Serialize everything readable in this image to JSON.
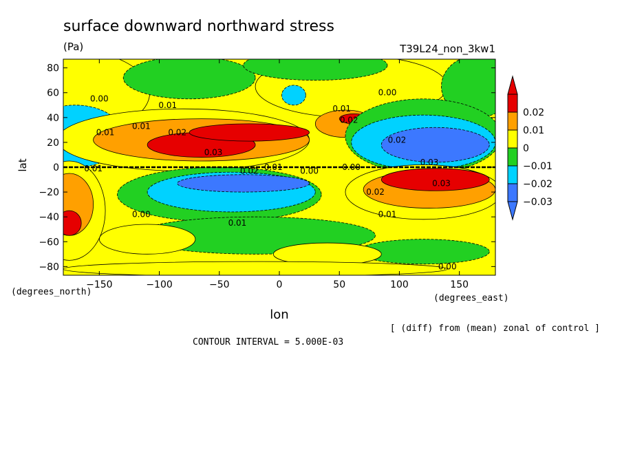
{
  "chart_data": {
    "type": "heatmap",
    "title": "surface downward northward stress",
    "units": "(Pa)",
    "run_id": "T39L24_non_3kw1",
    "xlabel": "lon",
    "ylabel": "lat",
    "xunits": "(degrees_east)",
    "yunits": "(degrees_north)",
    "note": "[ (diff) from (mean) zonal of control ]",
    "contour_interval": "CONTOUR INTERVAL = 5.000E-03",
    "xlim": [
      -180,
      180
    ],
    "ylim": [
      -87,
      87
    ],
    "x_ticks": [
      -150,
      -100,
      -50,
      0,
      50,
      100,
      150
    ],
    "y_ticks": [
      -80,
      -60,
      -40,
      -20,
      0,
      20,
      40,
      60,
      80
    ],
    "x_tick_labels": [
      "−150",
      "−100",
      "−50",
      "0",
      "50",
      "100",
      "150"
    ],
    "y_tick_labels": [
      "−80",
      "−60",
      "−40",
      "−20",
      "0",
      "20",
      "40",
      "60",
      "80"
    ],
    "colorbar": {
      "levels": [
        -0.03,
        -0.02,
        -0.01,
        0,
        0.01,
        0.02
      ],
      "labels": [
        "−0.03",
        "−0.02",
        "−0.01",
        "0",
        "0.01",
        "0.02"
      ],
      "colors": [
        "#3c78ff",
        "#00d2ff",
        "#22d022",
        "#ffff00",
        "#ffa000",
        "#e60000"
      ],
      "under_color": "#3c78ff",
      "over_color": "#e60000"
    },
    "contour_labels": [
      {
        "text": "0.00",
        "lon": -150,
        "lat": 55
      },
      {
        "text": "0.01",
        "lon": -145,
        "lat": 28
      },
      {
        "text": "0.01",
        "lon": -115,
        "lat": 33
      },
      {
        "text": "0.01",
        "lon": -93,
        "lat": 50
      },
      {
        "text": "0.02",
        "lon": -85,
        "lat": 28
      },
      {
        "text": "0.03",
        "lon": -55,
        "lat": 12
      },
      {
        "text": "0.01",
        "lon": -155,
        "lat": -1
      },
      {
        "text": "0.02",
        "lon": -25,
        "lat": -3
      },
      {
        "text": "0.01",
        "lon": -5,
        "lat": 0
      },
      {
        "text": "0.00",
        "lon": 25,
        "lat": -3
      },
      {
        "text": "0.01",
        "lon": 52,
        "lat": 47
      },
      {
        "text": "0.02",
        "lon": 58,
        "lat": 38
      },
      {
        "text": "0.00",
        "lon": 90,
        "lat": 60
      },
      {
        "text": "0.02",
        "lon": 98,
        "lat": 22
      },
      {
        "text": "0.03",
        "lon": 125,
        "lat": 4
      },
      {
        "text": "0.03",
        "lon": 135,
        "lat": -13
      },
      {
        "text": "0.02",
        "lon": 80,
        "lat": -20
      },
      {
        "text": "0.01",
        "lon": 90,
        "lat": -38
      },
      {
        "text": "0.00",
        "lon": 60,
        "lat": 0
      },
      {
        "text": "0.00",
        "lon": -115,
        "lat": -38
      },
      {
        "text": "0.01",
        "lon": -35,
        "lat": -45
      },
      {
        "text": "0.00",
        "lon": 140,
        "lat": -80
      }
    ],
    "regions": [
      {
        "value": 0.005,
        "lon": -178,
        "lat": 60,
        "rx": 70,
        "ry": 35
      },
      {
        "value": 0.005,
        "lon": 60,
        "lat": 65,
        "rx": 80,
        "ry": 25
      },
      {
        "value": -0.005,
        "lon": -75,
        "lat": 72,
        "rx": 55,
        "ry": 17
      },
      {
        "value": -0.005,
        "lon": 30,
        "lat": 82,
        "rx": 60,
        "ry": 12
      },
      {
        "value": -0.005,
        "lon": 165,
        "lat": 65,
        "rx": 30,
        "ry": 25
      },
      {
        "value": -0.015,
        "lon": -170,
        "lat": 25,
        "rx": 40,
        "ry": 25
      },
      {
        "value": -0.015,
        "lon": 12,
        "lat": 58,
        "rx": 10,
        "ry": 8
      },
      {
        "value": 0.005,
        "lon": -80,
        "lat": 22,
        "rx": 105,
        "ry": 25
      },
      {
        "value": 0.015,
        "lon": -65,
        "lat": 22,
        "rx": 90,
        "ry": 17
      },
      {
        "value": 0.025,
        "lon": -65,
        "lat": 18,
        "rx": 45,
        "ry": 10
      },
      {
        "value": 0.025,
        "lon": -25,
        "lat": 28,
        "rx": 50,
        "ry": 7
      },
      {
        "value": 0.015,
        "lon": 55,
        "lat": 35,
        "rx": 25,
        "ry": 11
      },
      {
        "value": 0.025,
        "lon": 62,
        "lat": 39,
        "rx": 12,
        "ry": 4
      },
      {
        "value": -0.005,
        "lon": 120,
        "lat": 25,
        "rx": 65,
        "ry": 30
      },
      {
        "value": -0.015,
        "lon": 120,
        "lat": 20,
        "rx": 60,
        "ry": 22
      },
      {
        "value": -0.025,
        "lon": 130,
        "lat": 18,
        "rx": 45,
        "ry": 14
      },
      {
        "value": 0.005,
        "lon": 120,
        "lat": -20,
        "rx": 65,
        "ry": 22
      },
      {
        "value": 0.015,
        "lon": 125,
        "lat": -18,
        "rx": 55,
        "ry": 15
      },
      {
        "value": 0.025,
        "lon": 130,
        "lat": -10,
        "rx": 45,
        "ry": 9
      },
      {
        "value": -0.005,
        "lon": -50,
        "lat": -22,
        "rx": 85,
        "ry": 22
      },
      {
        "value": -0.015,
        "lon": -40,
        "lat": -20,
        "rx": 70,
        "ry": 16
      },
      {
        "value": -0.025,
        "lon": -30,
        "lat": -13,
        "rx": 55,
        "ry": 7
      },
      {
        "value": 0.005,
        "lon": -175,
        "lat": -35,
        "rx": 30,
        "ry": 40
      },
      {
        "value": 0.015,
        "lon": -175,
        "lat": -30,
        "rx": 20,
        "ry": 25
      },
      {
        "value": 0.025,
        "lon": -175,
        "lat": -45,
        "rx": 10,
        "ry": 10
      },
      {
        "value": -0.005,
        "lon": -20,
        "lat": -55,
        "rx": 100,
        "ry": 15
      },
      {
        "value": -0.005,
        "lon": 120,
        "lat": -68,
        "rx": 55,
        "ry": 10
      },
      {
        "value": 0.005,
        "lon": -110,
        "lat": -58,
        "rx": 40,
        "ry": 12
      },
      {
        "value": 0.005,
        "lon": 40,
        "lat": -70,
        "rx": 45,
        "ry": 9
      },
      {
        "value": 0.005,
        "lon": -20,
        "lat": -82,
        "rx": 160,
        "ry": 6
      }
    ]
  }
}
